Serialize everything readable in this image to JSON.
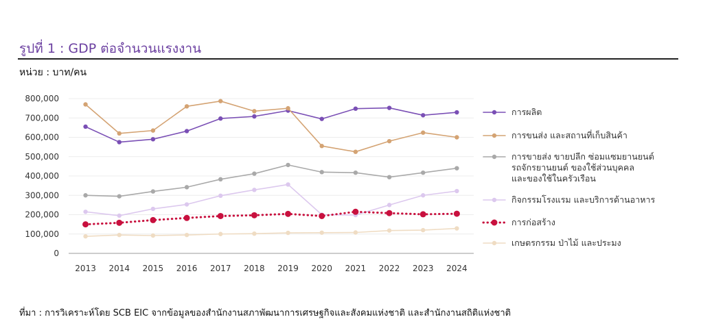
{
  "figure": {
    "title": "รูปที่ 1 : GDP ต่อจำนวนแรงงาน",
    "unit": "หน่วย : บาท/คน",
    "source": "ที่มา : การวิเคราะห์โดย SCB EIC จากข้อมูลของสำนักงานสภาพัฒนาการเศรษฐกิจและสังคมแห่งชาติ และสำนักงานสถิติแห่งชาติ"
  },
  "chart_data": {
    "type": "line",
    "title": "",
    "xlabel": "",
    "ylabel": "",
    "x": [
      "2013",
      "2014",
      "2015",
      "2016",
      "2017",
      "2018",
      "2019",
      "2020",
      "2021",
      "2022",
      "2023",
      "2024"
    ],
    "ylim": [
      0,
      800000
    ],
    "yticks": [
      "0",
      "100,000",
      "200,000",
      "300,000",
      "400,000",
      "500,000",
      "600,000",
      "700,000",
      "800,000"
    ],
    "grid": "horizontal",
    "legend_position": "right",
    "series": [
      {
        "name": "การผลิต",
        "color": "#7a4fb5",
        "style": "solid",
        "values": [
          655000,
          575000,
          590000,
          632000,
          697000,
          708000,
          738000,
          695000,
          748000,
          752000,
          714000,
          729000
        ]
      },
      {
        "name": "การขนส่ง และสถานที่เก็บสินค้า",
        "color": "#d4a373",
        "style": "solid",
        "values": [
          770000,
          620000,
          635000,
          760000,
          787000,
          735000,
          750000,
          555000,
          525000,
          580000,
          624000,
          600000
        ]
      },
      {
        "name": [
          "การขายส่ง ขายปลีก ซ่อมแซมยานยนต์",
          "รถจักรยานยนต์ ของใช้ส่วนบุคคล",
          "และของใช้ในครัวเรือน"
        ],
        "color": "#a9a9a9",
        "style": "solid",
        "values": [
          300000,
          295000,
          320000,
          342000,
          383000,
          412000,
          457000,
          420000,
          417000,
          394000,
          417000,
          440000
        ]
      },
      {
        "name": "กิจกรรมโรงแรม และบริการด้านอาหาร",
        "color": "#dcc8ee",
        "style": "solid",
        "values": [
          215000,
          195000,
          230000,
          253000,
          298000,
          328000,
          356000,
          200000,
          198000,
          250000,
          300000,
          322000
        ]
      },
      {
        "name": "การก่อสร้าง",
        "color": "#c8103e",
        "style": "dotted",
        "values": [
          150000,
          158000,
          172000,
          183000,
          193000,
          197000,
          204000,
          193000,
          215000,
          208000,
          202000,
          205000
        ]
      },
      {
        "name": "เกษตรกรรม ป่าไม้ และประมง",
        "color": "#efdcc3",
        "style": "solid",
        "values": [
          88000,
          95000,
          92000,
          95000,
          100000,
          102000,
          106000,
          107000,
          108000,
          118000,
          120000,
          129000
        ]
      }
    ]
  }
}
